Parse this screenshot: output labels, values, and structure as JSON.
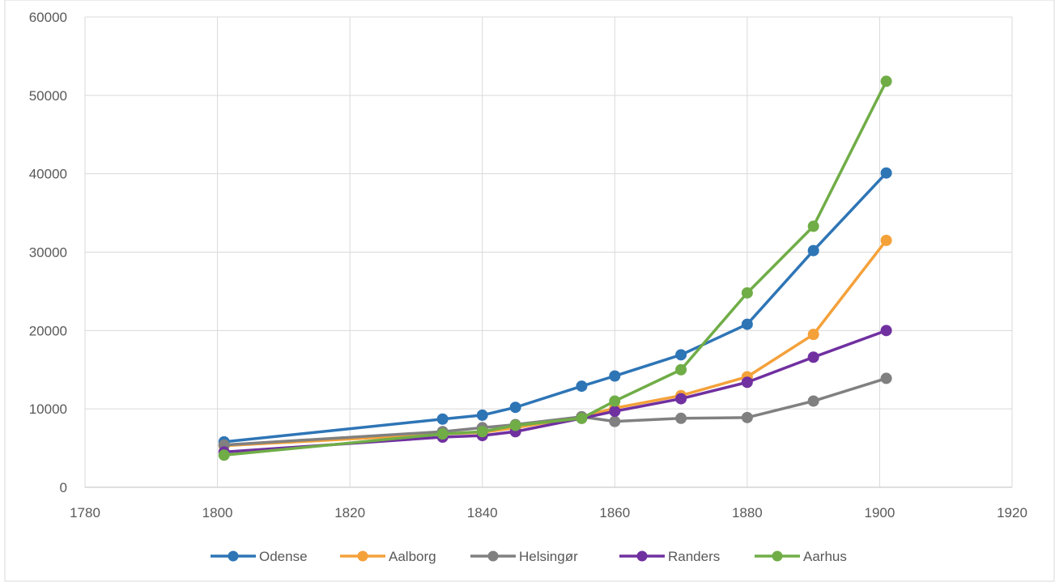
{
  "chart_data": {
    "type": "line",
    "title": "",
    "xlabel": "",
    "ylabel": "",
    "xlim": [
      1780,
      1920
    ],
    "ylim": [
      0,
      60000
    ],
    "x_ticks": [
      1780,
      1800,
      1820,
      1840,
      1860,
      1880,
      1900,
      1920
    ],
    "y_ticks": [
      0,
      10000,
      20000,
      30000,
      40000,
      50000,
      60000
    ],
    "grid": true,
    "legend_position": "bottom",
    "x": [
      1801,
      1834,
      1840,
      1845,
      1855,
      1860,
      1870,
      1880,
      1890,
      1901
    ],
    "series": [
      {
        "name": "Odense",
        "color": "#2E75B6",
        "values": [
          5800,
          8700,
          9200,
          10200,
          12900,
          14200,
          16900,
          20800,
          30200,
          40100
        ]
      },
      {
        "name": "Aalborg",
        "color": "#F4A13A",
        "values": [
          5300,
          6800,
          7000,
          7600,
          9000,
          10100,
          11700,
          14100,
          19500,
          31500
        ]
      },
      {
        "name": "Helsingør",
        "color": "#808080",
        "values": [
          5400,
          7100,
          7600,
          8000,
          9000,
          8400,
          8800,
          8900,
          11000,
          13900
        ]
      },
      {
        "name": "Randers",
        "color": "#7030A0",
        "values": [
          4500,
          6400,
          6600,
          7100,
          8800,
          9700,
          11300,
          13400,
          16600,
          20000
        ]
      },
      {
        "name": "Aarhus",
        "color": "#70AD47",
        "values": [
          4100,
          6800,
          7100,
          7900,
          8800,
          11000,
          15000,
          24800,
          33300,
          51800
        ]
      }
    ]
  }
}
